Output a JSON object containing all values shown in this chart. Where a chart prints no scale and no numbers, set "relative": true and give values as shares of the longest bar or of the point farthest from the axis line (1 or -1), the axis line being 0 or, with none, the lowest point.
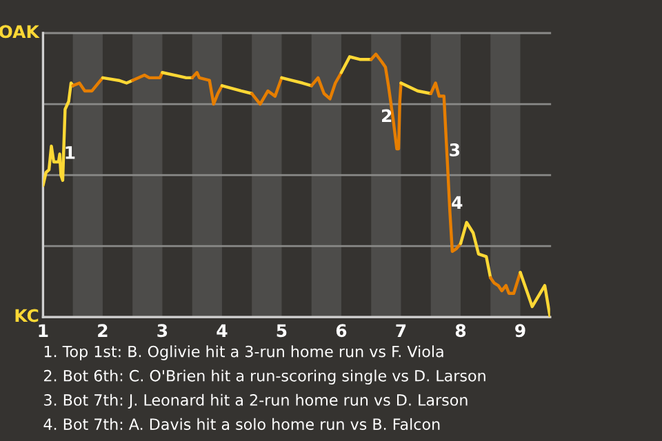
{
  "chart_data": {
    "type": "line",
    "relative": true,
    "series": [
      {
        "color": "#fdd835",
        "x": [
          1.0,
          1.05,
          1.1,
          1.14,
          1.18,
          1.26,
          1.28,
          1.3,
          1.33,
          1.35,
          1.37,
          1.41,
          1.43,
          1.47,
          1.5
        ],
        "values": [
          0.5,
          0.55,
          0.56,
          0.65,
          0.59,
          0.59,
          0.62,
          0.54,
          0.52,
          0.66,
          0.79,
          0.81,
          0.82,
          0.89,
          0.88
        ]
      },
      {
        "color": "#e67e00",
        "x": [
          1.5,
          1.61,
          1.7,
          1.82,
          2.0
        ],
        "values": [
          0.88,
          0.89,
          0.86,
          0.86,
          0.91
        ]
      },
      {
        "color": "#fdd835",
        "x": [
          2.0,
          2.27,
          2.4,
          2.5
        ],
        "values": [
          0.91,
          0.9,
          0.89,
          0.9
        ]
      },
      {
        "color": "#e67e00",
        "x": [
          2.5,
          2.7,
          2.78,
          2.96,
          3.0
        ],
        "values": [
          0.9,
          0.92,
          0.91,
          0.91,
          0.93
        ]
      },
      {
        "color": "#fdd835",
        "x": [
          3.0,
          3.4,
          3.5
        ],
        "values": [
          0.93,
          0.91,
          0.91
        ]
      },
      {
        "color": "#e67e00",
        "x": [
          3.5,
          3.58,
          3.62,
          3.79,
          3.86,
          3.93,
          4.0
        ],
        "values": [
          0.91,
          0.93,
          0.91,
          0.9,
          0.81,
          0.85,
          0.88
        ]
      },
      {
        "color": "#fdd835",
        "x": [
          4.0,
          4.32,
          4.5
        ],
        "values": [
          0.88,
          0.86,
          0.85
        ]
      },
      {
        "color": "#e67e00",
        "x": [
          4.5,
          4.64,
          4.77,
          4.89,
          5.0
        ],
        "values": [
          0.85,
          0.81,
          0.86,
          0.84,
          0.91
        ]
      },
      {
        "color": "#fdd835",
        "x": [
          5.0,
          5.17,
          5.35,
          5.5
        ],
        "values": [
          0.91,
          0.9,
          0.89,
          0.88
        ]
      },
      {
        "color": "#e67e00",
        "x": [
          5.5,
          5.61,
          5.71,
          5.81,
          5.9,
          6.0
        ],
        "values": [
          0.88,
          0.91,
          0.85,
          0.83,
          0.89,
          0.93
        ]
      },
      {
        "color": "#fdd835",
        "x": [
          6.0,
          6.14,
          6.31,
          6.44,
          6.5
        ],
        "values": [
          0.93,
          0.99,
          0.98,
          0.98,
          0.98
        ]
      },
      {
        "color": "#e67e00",
        "x": [
          6.5,
          6.58,
          6.68,
          6.74,
          6.79,
          6.87,
          6.93,
          6.96,
          6.98,
          7.0
        ],
        "values": [
          0.98,
          1.0,
          0.97,
          0.95,
          0.88,
          0.75,
          0.64,
          0.64,
          0.82,
          0.89
        ]
      },
      {
        "color": "#fdd835",
        "x": [
          7.0,
          7.28,
          7.5
        ],
        "values": [
          0.89,
          0.86,
          0.85
        ]
      },
      {
        "color": "#e67e00",
        "x": [
          7.5,
          7.58,
          7.64,
          7.72,
          7.78,
          7.82,
          7.86,
          7.93,
          8.0
        ],
        "values": [
          0.85,
          0.89,
          0.84,
          0.84,
          0.58,
          0.4,
          0.25,
          0.26,
          0.28
        ]
      },
      {
        "color": "#fdd835",
        "x": [
          8.0,
          8.1,
          8.21,
          8.3,
          8.43,
          8.5
        ],
        "values": [
          0.28,
          0.36,
          0.32,
          0.24,
          0.23,
          0.15
        ]
      },
      {
        "color": "#e67e00",
        "x": [
          8.5,
          8.56,
          8.63,
          8.69,
          8.76,
          8.81,
          8.89,
          9.0
        ],
        "values": [
          0.15,
          0.13,
          0.12,
          0.1,
          0.12,
          0.09,
          0.09,
          0.17
        ]
      },
      {
        "color": "#fdd835",
        "x": [
          9.0,
          9.2,
          9.41,
          9.5
        ],
        "values": [
          0.17,
          0.04,
          0.12,
          0.0
        ]
      }
    ],
    "xlim": [
      1,
      9.5
    ],
    "xticks": [
      1,
      2,
      3,
      4,
      5,
      6,
      7,
      8,
      9
    ],
    "marker": "none",
    "line_style": "solid",
    "ref_lines": [
      {
        "axis": "y",
        "value": 0,
        "label": "KC",
        "color": "#8a8a88"
      },
      {
        "axis": "y",
        "value": 0.27,
        "color": "#8a8a88"
      },
      {
        "axis": "y",
        "value": 0.54,
        "color": "#8a8a88"
      },
      {
        "axis": "y",
        "value": 0.81,
        "color": "#8a8a88"
      },
      {
        "axis": "y",
        "value": 1.08,
        "label": "OAK",
        "color": "#8a8a88"
      }
    ],
    "bands": [
      {
        "axis": "x",
        "from": 1.5,
        "to": 2,
        "color": "#4d4c4a"
      },
      {
        "axis": "x",
        "from": 2.5,
        "to": 3,
        "color": "#4d4c4a"
      },
      {
        "axis": "x",
        "from": 3.5,
        "to": 4,
        "color": "#4d4c4a"
      },
      {
        "axis": "x",
        "from": 4.5,
        "to": 5,
        "color": "#4d4c4a"
      },
      {
        "axis": "x",
        "from": 5.5,
        "to": 6,
        "color": "#4d4c4a"
      },
      {
        "axis": "x",
        "from": 6.5,
        "to": 7,
        "color": "#4d4c4a"
      },
      {
        "axis": "x",
        "from": 7.5,
        "to": 8,
        "color": "#4d4c4a"
      },
      {
        "axis": "x",
        "from": 8.5,
        "to": 9,
        "color": "#4d4c4a"
      }
    ],
    "annotations": [
      {
        "text": "1",
        "x": 1.45,
        "y": 0.62
      },
      {
        "text": "2",
        "x": 6.76,
        "y": 0.76
      },
      {
        "text": "3",
        "x": 7.9,
        "y": 0.63
      },
      {
        "text": "4",
        "x": 7.94,
        "y": 0.43
      },
      "1. Top 1st: B. Oglivie hit a 3-run home run vs F. Viola",
      "2. Bot 6th: C. O'Brien hit a run-scoring single vs D. Larson",
      "3. Bot 7th: J. Leonard hit a 2-run home run vs D. Larson",
      "4. Bot 7th: A. Davis hit a solo home run vs B. Falcon"
    ]
  }
}
